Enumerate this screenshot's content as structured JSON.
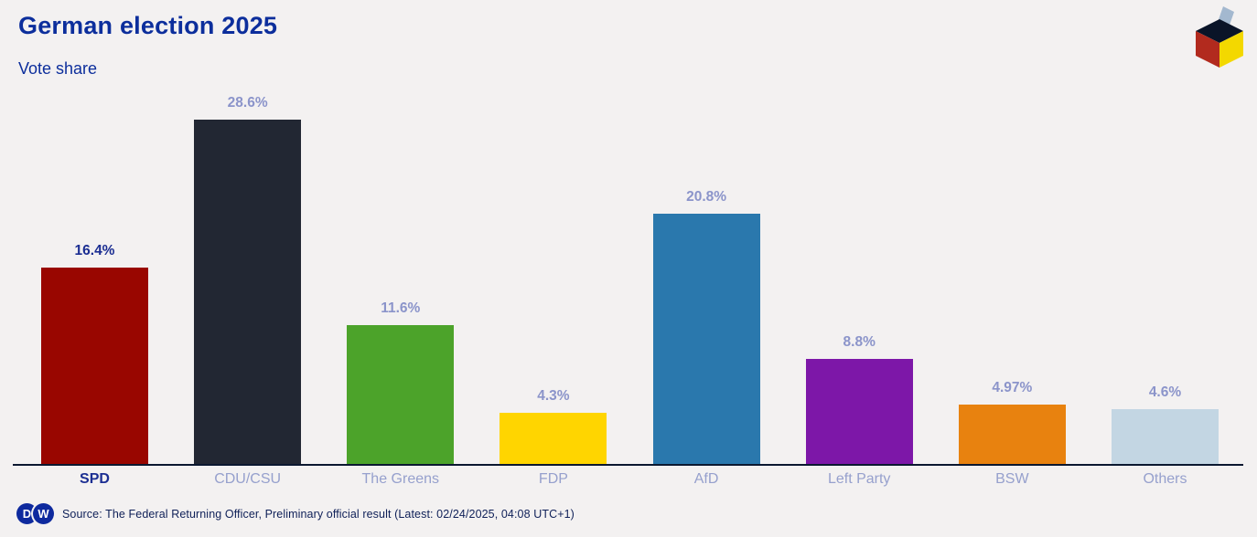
{
  "header": {
    "title": "German election 2025",
    "subtitle": "Vote share"
  },
  "chart_data": {
    "type": "bar",
    "title": "German election 2025",
    "subtitle": "Vote share",
    "categories": [
      "SPD",
      "CDU/CSU",
      "The Greens",
      "FDP",
      "AfD",
      "Left Party",
      "BSW",
      "Others"
    ],
    "values": [
      16.4,
      28.6,
      11.6,
      4.3,
      20.8,
      8.8,
      4.97,
      4.6
    ],
    "value_labels": [
      "16.4%",
      "28.6%",
      "11.6%",
      "4.3%",
      "20.8%",
      "8.8%",
      "4.97%",
      "4.6%"
    ],
    "bar_colors": [
      "#990600",
      "#222733",
      "#4ca32a",
      "#ffd500",
      "#2a78ad",
      "#7d17a8",
      "#e8820f",
      "#c3d6e3"
    ],
    "highlighted_category": "SPD",
    "xlabel": "",
    "ylabel": "",
    "ylim": [
      0,
      30
    ],
    "grid": false,
    "legend": "none",
    "orientation": "vertical"
  },
  "footer": {
    "logo": "dw-logo",
    "logo_letters": {
      "d": "D",
      "w": "W"
    },
    "source": "Source: The Federal Returning Officer, Preliminary official result (Latest: 02/24/2025, 04:08 UTC+1)"
  },
  "icons": {
    "ballot_box": "ballot-box-icon"
  },
  "colors": {
    "background": "#f3f1f1",
    "accent_blue": "#0c2e9c",
    "highlight_label": "#1b2e92",
    "muted_label": "#8b94ca",
    "axis": "#0b1830",
    "source_text": "#0f2058",
    "dw_logo_blue": "#0e2a9e",
    "ballot_top": "#0a1428",
    "ballot_left": "#b22a1e",
    "ballot_right": "#f3d800",
    "ballot_slip": "#a3b8cf"
  }
}
